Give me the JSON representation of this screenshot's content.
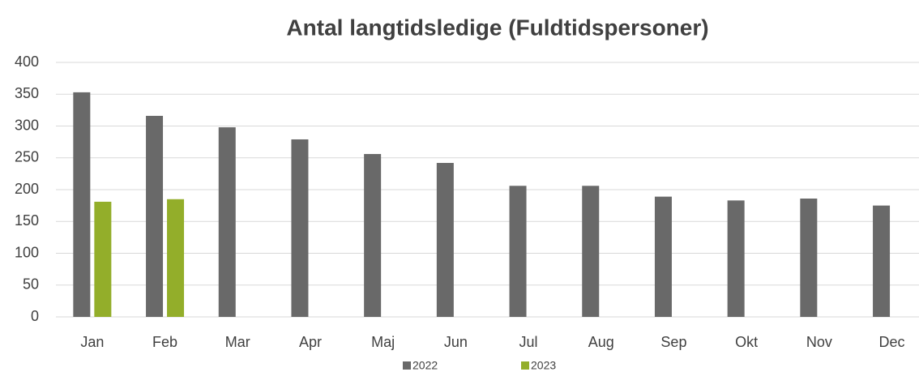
{
  "chart_data": {
    "type": "bar",
    "title": "Antal langtidsledige (Fuldtidspersoner)",
    "categories": [
      "Jan",
      "Feb",
      "Mar",
      "Apr",
      "Maj",
      "Jun",
      "Jul",
      "Aug",
      "Sep",
      "Okt",
      "Nov",
      "Dec"
    ],
    "series": [
      {
        "name": "2022",
        "color": "#696969",
        "values": [
          353,
          316,
          298,
          279,
          256,
          242,
          206,
          206,
          189,
          183,
          186,
          175
        ]
      },
      {
        "name": "2023",
        "color": "#93ae2a",
        "values": [
          181,
          185,
          null,
          null,
          null,
          null,
          null,
          null,
          null,
          null,
          null,
          null
        ]
      }
    ],
    "ylim": [
      0,
      400
    ],
    "yticks": [
      0,
      50,
      100,
      150,
      200,
      250,
      300,
      350,
      400
    ],
    "grid": true,
    "legend": "bottom"
  }
}
